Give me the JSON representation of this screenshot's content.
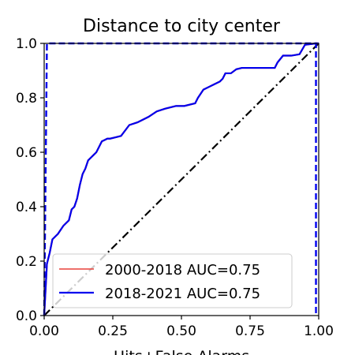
{
  "chart_data": {
    "type": "line",
    "title": "Distance to city center",
    "xlabel": "Hits+False Alarms",
    "ylabel": "",
    "xlim": [
      0,
      1
    ],
    "ylim": [
      0,
      1
    ],
    "xticks": [
      "0.00",
      "0.25",
      "0.50",
      "0.75",
      "1.00"
    ],
    "yticks": [
      "0.0",
      "0.2",
      "0.4",
      "0.6",
      "0.8",
      "1.0"
    ],
    "grid": false,
    "legend_position": "lower-right",
    "reference_line": {
      "x": [
        0,
        1
      ],
      "y": [
        0,
        1
      ],
      "color": "#000000",
      "style": "dash-dot"
    },
    "series": [
      {
        "name": "2000-2018 AUC=0.75",
        "color": "#e8403a",
        "style": "solid",
        "x": [
          0,
          0.01,
          0.02,
          0.03,
          0.05,
          0.07,
          0.09,
          0.1,
          0.11,
          0.12,
          0.13,
          0.14,
          0.15,
          0.16,
          0.17,
          0.18,
          0.19,
          0.2,
          0.21,
          0.22,
          0.23,
          0.24,
          0.26,
          0.28,
          0.31,
          0.34,
          0.36,
          0.38,
          0.41,
          0.44,
          0.46,
          0.48,
          0.51,
          0.55,
          0.56,
          0.58,
          0.6,
          0.62,
          0.64,
          0.65,
          0.66,
          0.68,
          0.7,
          0.72,
          0.75,
          0.8,
          0.84,
          0.85,
          0.87,
          0.9,
          0.93,
          0.95,
          0.99,
          1.0
        ],
        "y": [
          0,
          0.19,
          0.23,
          0.28,
          0.3,
          0.33,
          0.35,
          0.39,
          0.4,
          0.43,
          0.48,
          0.52,
          0.54,
          0.57,
          0.58,
          0.59,
          0.6,
          0.62,
          0.64,
          0.645,
          0.65,
          0.65,
          0.655,
          0.66,
          0.7,
          0.71,
          0.72,
          0.73,
          0.75,
          0.76,
          0.765,
          0.77,
          0.77,
          0.78,
          0.8,
          0.83,
          0.84,
          0.85,
          0.86,
          0.87,
          0.89,
          0.89,
          0.905,
          0.91,
          0.91,
          0.91,
          0.91,
          0.93,
          0.955,
          0.955,
          0.96,
          0.995,
          1.0,
          1.0
        ]
      },
      {
        "name": "2018-2021 AUC=0.75",
        "color": "#0000ee",
        "style": "solid",
        "x": [
          0,
          0.01,
          0.02,
          0.03,
          0.05,
          0.07,
          0.09,
          0.1,
          0.11,
          0.12,
          0.13,
          0.14,
          0.15,
          0.16,
          0.17,
          0.18,
          0.19,
          0.2,
          0.21,
          0.22,
          0.23,
          0.24,
          0.26,
          0.28,
          0.31,
          0.34,
          0.36,
          0.38,
          0.41,
          0.44,
          0.46,
          0.48,
          0.51,
          0.55,
          0.56,
          0.58,
          0.6,
          0.62,
          0.64,
          0.65,
          0.66,
          0.68,
          0.7,
          0.72,
          0.75,
          0.8,
          0.84,
          0.85,
          0.87,
          0.9,
          0.93,
          0.95,
          0.99,
          1.0
        ],
        "y": [
          0,
          0.19,
          0.23,
          0.28,
          0.3,
          0.33,
          0.35,
          0.39,
          0.4,
          0.43,
          0.48,
          0.52,
          0.54,
          0.57,
          0.58,
          0.59,
          0.6,
          0.62,
          0.64,
          0.645,
          0.65,
          0.65,
          0.655,
          0.66,
          0.7,
          0.71,
          0.72,
          0.73,
          0.75,
          0.76,
          0.765,
          0.77,
          0.77,
          0.78,
          0.8,
          0.83,
          0.84,
          0.85,
          0.86,
          0.87,
          0.89,
          0.89,
          0.905,
          0.91,
          0.91,
          0.91,
          0.91,
          0.93,
          0.955,
          0.955,
          0.96,
          0.995,
          1.0,
          1.0
        ]
      },
      {
        "name": "",
        "color": "#0000ee",
        "style": "dashed",
        "x": [
          0,
          0.01,
          0.99,
          0.99
        ],
        "y": [
          0,
          1.0,
          1.0,
          0
        ]
      }
    ]
  }
}
